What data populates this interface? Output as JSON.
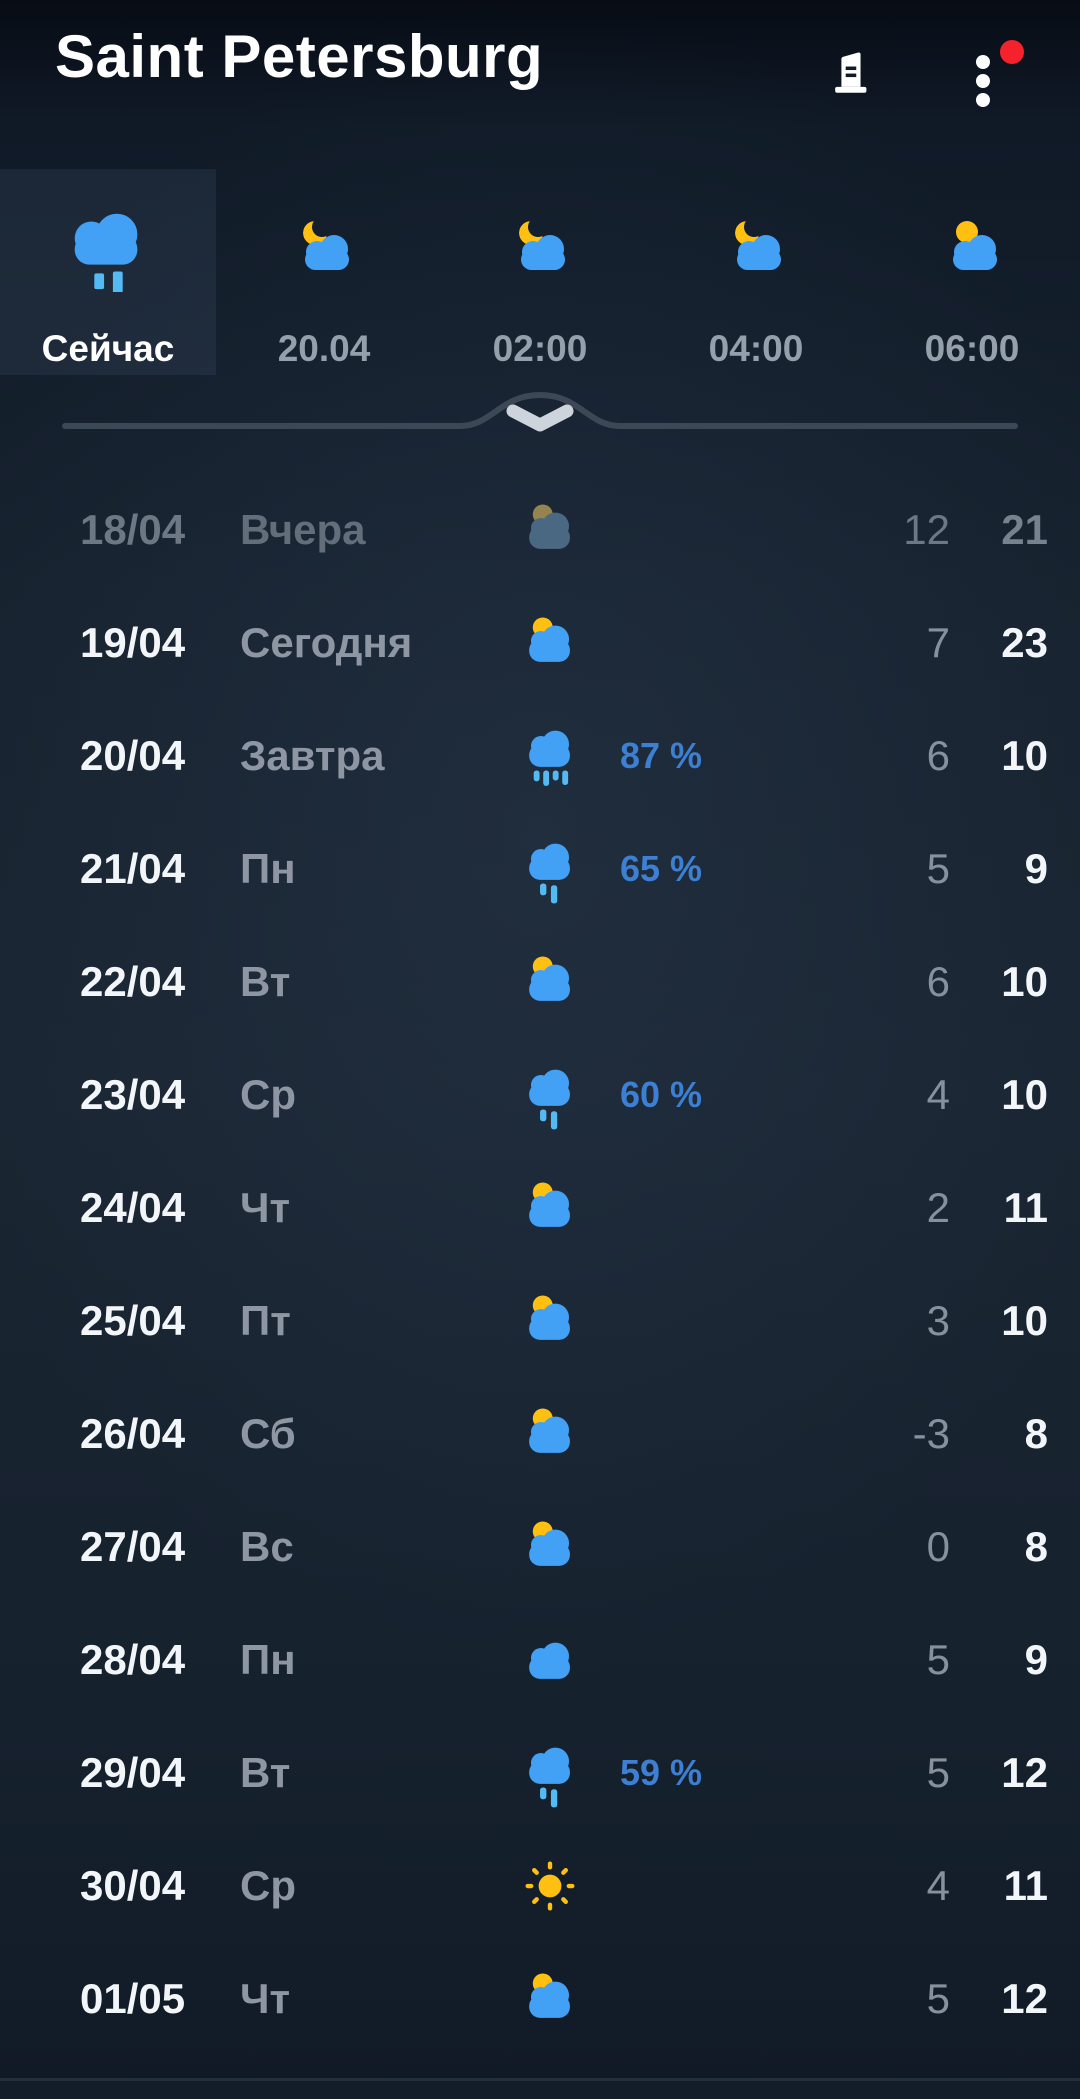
{
  "header": {
    "title": "Saint Petersburg",
    "landmark_icon": "city-landmark",
    "menu_icon": "kebab-menu",
    "menu_has_notification": true
  },
  "colors": {
    "cloud": "#42a0f5",
    "cloud_small_bump": "#42a0f5",
    "rain_drop": "#53baf3",
    "sun": "#ffc012",
    "pop_blue": "#3d7fd2",
    "badge_red": "#f5222d",
    "handle_line": "#3c4855",
    "handle_chevron": "#cdd4dc",
    "icon_slot_bg": "#111a26"
  },
  "hourly": {
    "items": [
      {
        "label": "Сейчас",
        "icon": "rain-big",
        "selected": true
      },
      {
        "label": "20.04",
        "icon": "moon-cloud",
        "selected": false
      },
      {
        "label": "02:00",
        "icon": "moon-cloud",
        "selected": false
      },
      {
        "label": "04:00",
        "icon": "moon-cloud",
        "selected": false
      },
      {
        "label": "06:00",
        "icon": "sun-cloud-wide",
        "selected": false
      }
    ]
  },
  "daily": {
    "rows": [
      {
        "date": "18/04",
        "day": "Вчера",
        "icon": "sun-cloud",
        "pop": "",
        "min": "12",
        "max": "21",
        "dimmed": true
      },
      {
        "date": "19/04",
        "day": "Сегодня",
        "icon": "sun-cloud",
        "pop": "",
        "min": "7",
        "max": "23",
        "dimmed": false
      },
      {
        "date": "20/04",
        "day": "Завтра",
        "icon": "rain-heavy",
        "pop": "87 %",
        "min": "6",
        "max": "10",
        "dimmed": false
      },
      {
        "date": "21/04",
        "day": "Пн",
        "icon": "rain",
        "pop": "65 %",
        "min": "5",
        "max": "9",
        "dimmed": false
      },
      {
        "date": "22/04",
        "day": "Вт",
        "icon": "sun-cloud",
        "pop": "",
        "min": "6",
        "max": "10",
        "dimmed": false
      },
      {
        "date": "23/04",
        "day": "Ср",
        "icon": "rain",
        "pop": "60 %",
        "min": "4",
        "max": "10",
        "dimmed": false
      },
      {
        "date": "24/04",
        "day": "Чт",
        "icon": "sun-cloud",
        "pop": "",
        "min": "2",
        "max": "11",
        "dimmed": false
      },
      {
        "date": "25/04",
        "day": "Пт",
        "icon": "sun-cloud",
        "pop": "",
        "min": "3",
        "max": "10",
        "dimmed": false
      },
      {
        "date": "26/04",
        "day": "Сб",
        "icon": "sun-cloud",
        "pop": "",
        "min": "-3",
        "max": "8",
        "dimmed": false
      },
      {
        "date": "27/04",
        "day": "Вс",
        "icon": "sun-cloud",
        "pop": "",
        "min": "0",
        "max": "8",
        "dimmed": false
      },
      {
        "date": "28/04",
        "day": "Пн",
        "icon": "cloud",
        "pop": "",
        "min": "5",
        "max": "9",
        "dimmed": false
      },
      {
        "date": "29/04",
        "day": "Вт",
        "icon": "rain",
        "pop": "59 %",
        "min": "5",
        "max": "12",
        "dimmed": false
      },
      {
        "date": "30/04",
        "day": "Ср",
        "icon": "sun",
        "pop": "",
        "min": "4",
        "max": "11",
        "dimmed": false
      },
      {
        "date": "01/05",
        "day": "Чт",
        "icon": "sun-cloud",
        "pop": "",
        "min": "5",
        "max": "12",
        "dimmed": false
      }
    ]
  }
}
